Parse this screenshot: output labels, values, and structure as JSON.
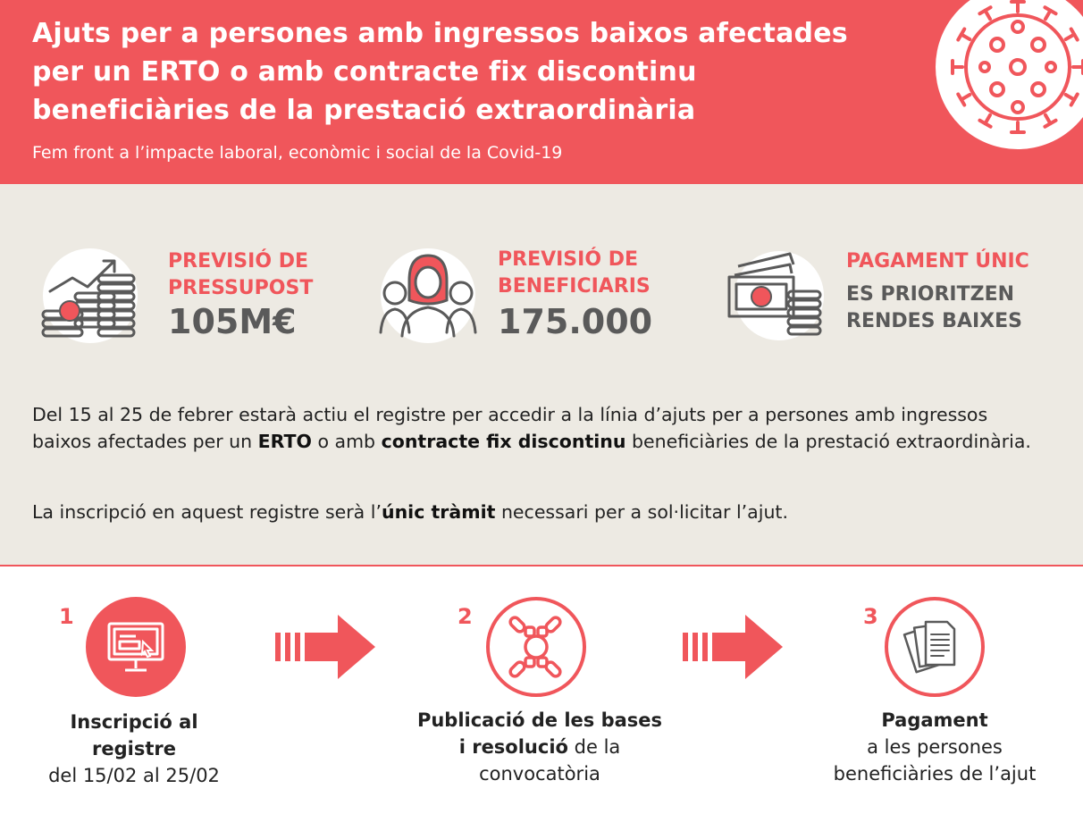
{
  "header": {
    "title_line1": "Ajuts per a persones amb ingressos baixos afectades",
    "title_line2": "per un ERTO o amb contracte fix discontinu",
    "title_line3": "beneficiàries de la prestació extraordinària",
    "subtitle": "Fem front a l’impacte laboral, econòmic i social de la Covid-19"
  },
  "stats": [
    {
      "label_line1": "PREVISIÓ DE",
      "label_line2": "PRESSUPOST",
      "value": "105M€",
      "icon": "coins-growth-icon"
    },
    {
      "label_line1": "PREVISIÓ DE",
      "label_line2": "BENEFICIARIS",
      "value": "175.000",
      "icon": "people-icon"
    },
    {
      "label_line1": "PAGAMENT ÚNIC",
      "label_line2": "ES PRIORITZEN",
      "label_line3": "RENDES BAIXES",
      "icon": "banknotes-icon"
    }
  ],
  "intro": {
    "p1_a": "Del 15 al 25 de febrer estarà actiu el registre per accedir a la línia d’ajuts per a persones amb ingressos baixos afectades per un ",
    "p1_b": "ERTO",
    "p1_c": " o amb ",
    "p1_d": "contracte fix discontinu",
    "p1_e": " beneficiàries de la prestació extraordinària.",
    "p2_a": "La inscripció en aquest registre serà l’",
    "p2_b": "únic tràmit",
    "p2_c": " necessari per a sol·licitar l’ajut."
  },
  "steps": [
    {
      "number": "1",
      "bold_line1": "Inscripció al",
      "bold_line2": "registre",
      "normal": "del 15/02 al 25/02",
      "icon": "computer-icon"
    },
    {
      "number": "2",
      "bold_line1": "Publicació de les bases",
      "bold_line2": "i resolució",
      "normal_inline": " de la",
      "normal": "convocatòria",
      "icon": "chain-link-icon"
    },
    {
      "number": "3",
      "bold_line1": "Pagament",
      "normal_line1": "a les persones",
      "normal": "beneficiàries de l’ajut",
      "icon": "documents-icon"
    }
  ],
  "colors": {
    "accent": "#f0565b",
    "background_grey": "#edeae3",
    "dark_grey": "#5a5a5a"
  }
}
